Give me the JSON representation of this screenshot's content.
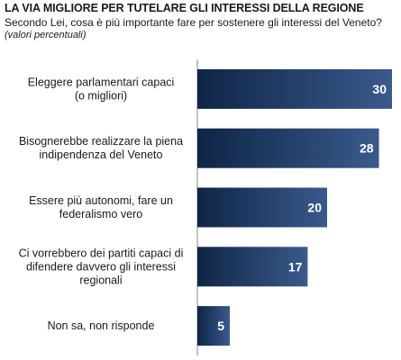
{
  "title": "LA VIA MIGLIORE PER TUTELARE GLI INTERESSI DELLA REGIONE",
  "subtitle": "Secondo Lei, cosa è più importante fare per sostenere gli interessi del Veneto?",
  "note": "(valori percentuali)",
  "colors": {
    "bar_dark": "#0f2546",
    "bar_light": "#3a5a8c",
    "axis": "#8a8a8a"
  },
  "chart_data": {
    "type": "bar",
    "orientation": "horizontal",
    "categories": [
      "Eleggere parlamentari capaci\n(o migliori)",
      "Bisognerebbe realizzare la piena\nindipendenza del Veneto",
      "Essere più autonomi, fare un\nfederalismo vero",
      "Ci vorrebbero dei partiti capaci di\ndifendere davvero gli interessi\nregionali",
      "Non sa, non risponde"
    ],
    "values": [
      30,
      28,
      20,
      17,
      5
    ],
    "data_labels": [
      "30",
      "28",
      "20",
      "17",
      "5"
    ],
    "xlim": [
      0,
      30
    ],
    "grid": false,
    "legend": "none"
  }
}
